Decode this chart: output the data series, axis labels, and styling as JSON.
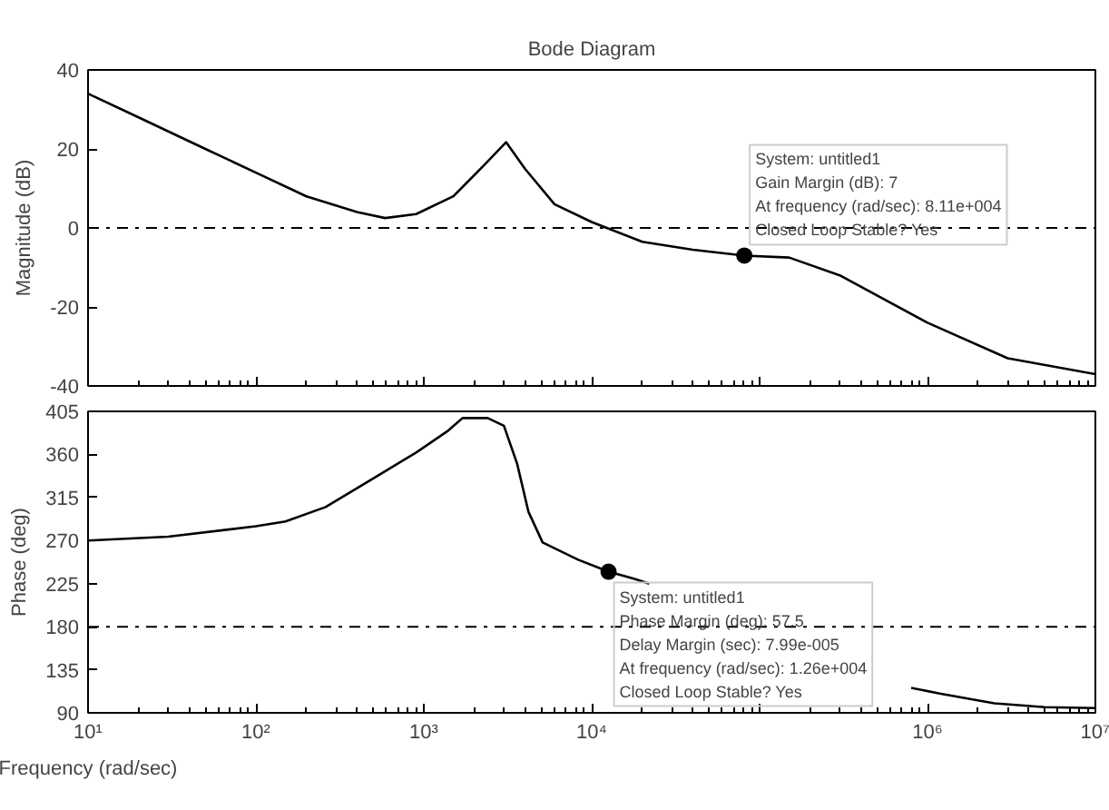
{
  "chart_data": [
    {
      "type": "line",
      "title": "Bode Diagram",
      "ylabel": "Magnitude (dB)",
      "log": "x",
      "tick_labels": "y",
      "xlim": [
        10,
        10000000
      ],
      "xticks": [
        10,
        100,
        1000,
        10000,
        100000,
        1000000,
        10000000
      ],
      "ylim": [
        -40,
        40
      ],
      "yticks": [
        -40,
        -20,
        0,
        20,
        40
      ],
      "series": [
        {
          "color": "#000000",
          "x": [
            10,
            20,
            50,
            100,
            200,
            400,
            588,
            900,
            1500,
            2300,
            3090,
            4000,
            6000,
            10000,
            12300,
            20000,
            40000,
            81100,
            150000,
            300000,
            1000000,
            3000000,
            10000000
          ],
          "values": [
            34,
            28,
            20,
            14,
            8,
            4,
            2.5,
            3.5,
            8,
            16,
            21.7,
            15,
            6,
            1.5,
            0,
            -3.5,
            -5.5,
            -7,
            -7.5,
            -12,
            -24,
            -33,
            -37
          ]
        }
      ],
      "ref_lines": [
        {
          "axis": "y",
          "value": 0,
          "line_style": "dashdot",
          "color": "#000000"
        }
      ],
      "annotations": [
        {
          "text": "System: untitled1\nGain Margin (dB): 7\nAt frequency (rad/sec): 8.11e+004\nClosed Loop Stable? Yes",
          "x": 81100,
          "y": -7
        }
      ]
    },
    {
      "type": "line",
      "xlabel": "Frequency (rad/sec)",
      "ylabel": "Phase (deg)",
      "log": "x",
      "xlim": [
        10,
        10000000
      ],
      "xticks": [
        {
          "value": 10,
          "label": "10¹"
        },
        {
          "value": 100,
          "label": "10²"
        },
        {
          "value": 1000,
          "label": "10³"
        },
        {
          "value": 10000,
          "label": "10⁴"
        },
        {
          "value": 100000,
          "label": null
        },
        {
          "value": 1000000,
          "label": "10⁶"
        },
        {
          "value": 10000000,
          "label": "10⁷"
        }
      ],
      "ylim": [
        90,
        405
      ],
      "yticks": [
        90,
        135,
        180,
        225,
        270,
        315,
        360,
        405
      ],
      "series": [
        {
          "color": "#000000",
          "x": [
            10,
            30,
            100,
            150,
            260,
            500,
            900,
            1400,
            1700,
            2400,
            3000,
            3600,
            4200,
            5100,
            8300,
            12600,
            18000,
            22000,
            50000,
            100000,
            300000,
            800000,
            1200000,
            2500000,
            5000000,
            10000000
          ],
          "values": [
            270,
            274,
            285,
            290,
            305,
            335,
            362,
            385,
            398,
            398,
            390,
            350,
            300,
            268,
            250,
            237.5,
            230,
            225,
            null,
            null,
            null,
            116,
            110,
            100,
            96,
            95
          ]
        }
      ],
      "ref_lines": [
        {
          "axis": "y",
          "value": 180,
          "line_style": "dashdot",
          "color": "#000000"
        }
      ],
      "annotations": [
        {
          "text": "System: untitled1\nPhase Margin (deg): 57.5\nDelay Margin (sec): 7.99e-005\nAt frequency (rad/sec): 1.26e+004\nClosed Loop Stable? Yes",
          "x": 12600,
          "y": 237.5
        }
      ]
    }
  ]
}
